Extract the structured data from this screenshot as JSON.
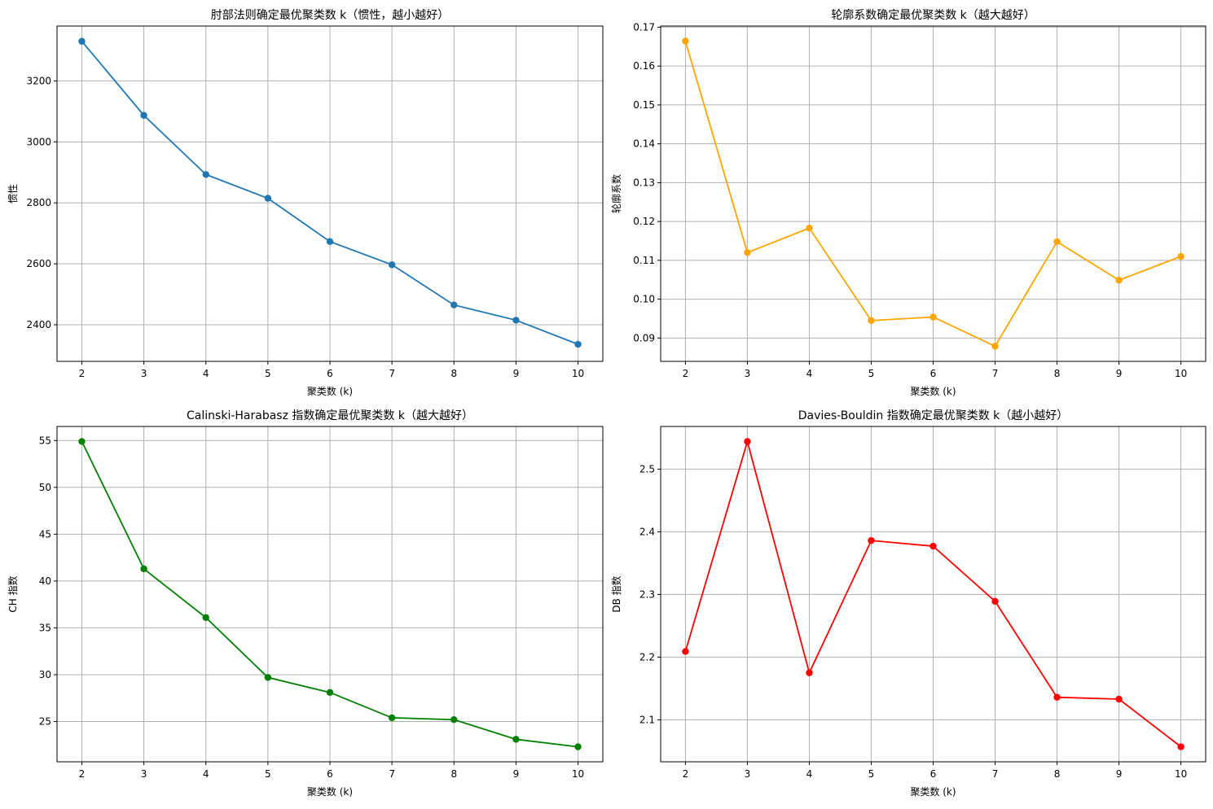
{
  "chart_data": [
    {
      "type": "line",
      "title": "肘部法则确定最优聚类数 k（惯性，越小越好）",
      "xlabel": "聚类数 (k)",
      "ylabel": "惯性",
      "x": [
        2,
        3,
        4,
        5,
        6,
        7,
        8,
        9,
        10
      ],
      "xticks": [
        "2",
        "3",
        "4",
        "5",
        "6",
        "7",
        "8",
        "9",
        "10"
      ],
      "xlim": [
        1.6,
        10.4
      ],
      "ylim": [
        2280,
        3380
      ],
      "yticks": [
        "2400",
        "2600",
        "2800",
        "3000",
        "3200"
      ],
      "ytick_values": [
        2400,
        2600,
        2800,
        3000,
        3200
      ],
      "grid": true,
      "color": "#1f77b4",
      "series": [
        {
          "values": [
            3330,
            3087,
            2893,
            2815,
            2673,
            2597,
            2465,
            2415,
            2336
          ]
        }
      ]
    },
    {
      "type": "line",
      "title": "轮廓系数确定最优聚类数 k（越大越好）",
      "xlabel": "聚类数 (k)",
      "ylabel": "轮廓系数",
      "x": [
        2,
        3,
        4,
        5,
        6,
        7,
        8,
        9,
        10
      ],
      "xticks": [
        "2",
        "3",
        "4",
        "5",
        "6",
        "7",
        "8",
        "9",
        "10"
      ],
      "xlim": [
        1.6,
        10.4
      ],
      "ylim": [
        0.084,
        0.1703
      ],
      "yticks": [
        "0.09",
        "0.10",
        "0.11",
        "0.12",
        "0.13",
        "0.14",
        "0.15",
        "0.16",
        "0.17"
      ],
      "ytick_values": [
        0.09,
        0.1,
        0.11,
        0.12,
        0.13,
        0.14,
        0.15,
        0.16,
        0.17
      ],
      "grid": true,
      "color": "#ffa500",
      "series": [
        {
          "values": [
            0.1664,
            0.112,
            0.1183,
            0.0945,
            0.0954,
            0.0879,
            0.1148,
            0.1049,
            0.111
          ]
        }
      ]
    },
    {
      "type": "line",
      "title": "Calinski-Harabasz 指数确定最优聚类数 k（越大越好）",
      "xlabel": "聚类数 (k)",
      "ylabel": "CH 指数",
      "x": [
        2,
        3,
        4,
        5,
        6,
        7,
        8,
        9,
        10
      ],
      "xticks": [
        "2",
        "3",
        "4",
        "5",
        "6",
        "7",
        "8",
        "9",
        "10"
      ],
      "xlim": [
        1.6,
        10.4
      ],
      "ylim": [
        20.7,
        56.5
      ],
      "yticks": [
        "25",
        "30",
        "35",
        "40",
        "45",
        "50",
        "55"
      ],
      "ytick_values": [
        25,
        30,
        35,
        40,
        45,
        50,
        55
      ],
      "grid": true,
      "color": "#008000",
      "series": [
        {
          "values": [
            54.9,
            41.3,
            36.1,
            29.7,
            28.1,
            25.4,
            25.2,
            23.1,
            22.3
          ]
        }
      ]
    },
    {
      "type": "line",
      "title": "Davies-Bouldin 指数确定最优聚类数 k（越小越好）",
      "xlabel": "聚类数 (k)",
      "ylabel": "DB 指数",
      "x": [
        2,
        3,
        4,
        5,
        6,
        7,
        8,
        9,
        10
      ],
      "xticks": [
        "2",
        "3",
        "4",
        "5",
        "6",
        "7",
        "8",
        "9",
        "10"
      ],
      "xlim": [
        1.6,
        10.4
      ],
      "ylim": [
        2.033,
        2.568
      ],
      "yticks": [
        "2.1",
        "2.2",
        "2.3",
        "2.4",
        "2.5"
      ],
      "ytick_values": [
        2.1,
        2.2,
        2.3,
        2.4,
        2.5
      ],
      "grid": true,
      "color": "#ff0000",
      "series": [
        {
          "values": [
            2.209,
            2.544,
            2.175,
            2.386,
            2.377,
            2.289,
            2.136,
            2.133,
            2.057
          ]
        }
      ]
    }
  ]
}
